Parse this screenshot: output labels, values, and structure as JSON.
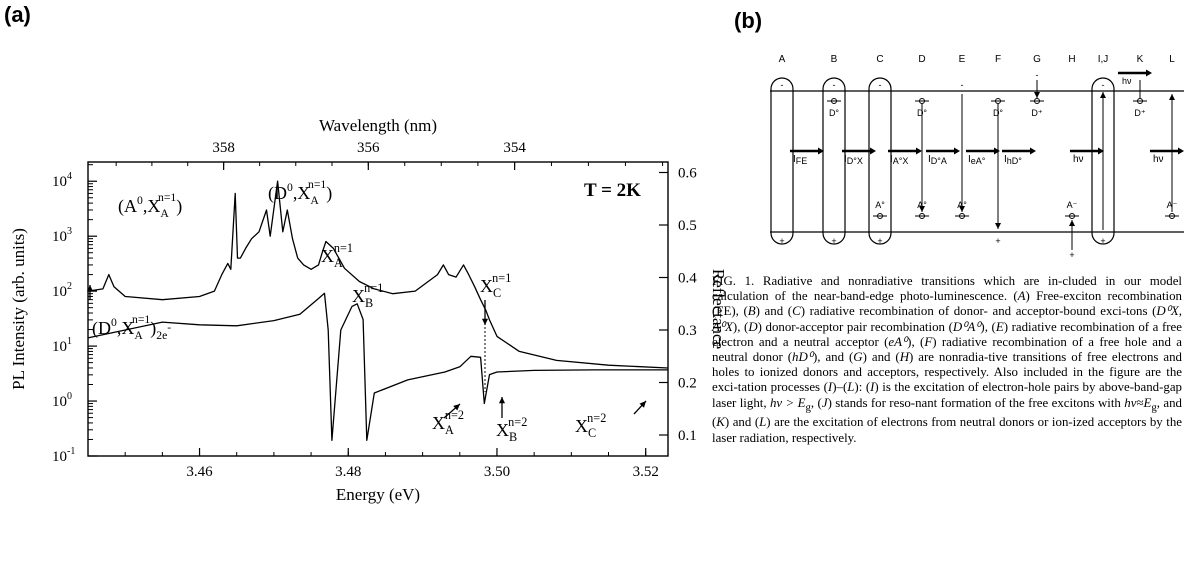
{
  "panel_labels": {
    "a": "(a)",
    "b": "(b)"
  },
  "chart_data": {
    "type": "line",
    "title": "",
    "xlabel": "Energy (eV)",
    "ylabel": "PL Intensity (arb. units)",
    "y2label": "Reflectance",
    "x2label": "Wavelength (nm)",
    "temperature_label": "T = 2K",
    "xlim": [
      3.445,
      3.523
    ],
    "ylim_log10": [
      -1,
      4.35
    ],
    "y2lim": [
      0.06,
      0.62
    ],
    "log_y": true,
    "grid": false,
    "x_ticks": [
      3.46,
      3.48,
      3.5,
      3.52
    ],
    "x_tick_labels": [
      "3.46",
      "3.48",
      "3.50",
      "3.52"
    ],
    "y_ticks_log10": [
      -1,
      0,
      1,
      2,
      3,
      4
    ],
    "y_tick_labels": [
      "10",
      "10",
      "10",
      "10",
      "10",
      "10"
    ],
    "y_tick_exponents": [
      "-1",
      "0",
      "1",
      "2",
      "3",
      "4"
    ],
    "y2_ticks": [
      0.1,
      0.2,
      0.3,
      0.4,
      0.5,
      0.6
    ],
    "y2_tick_labels": [
      "0.1",
      "0.2",
      "0.3",
      "0.4",
      "0.5",
      "0.6"
    ],
    "wavelength_ticks_nm": [
      358,
      356,
      354
    ],
    "wavelength_tick_labels": [
      "358",
      "356",
      "354"
    ],
    "series": [
      {
        "role": "pl",
        "axis": "left",
        "x": [
          3.445,
          3.447,
          3.4478,
          3.4485,
          3.45,
          3.455,
          3.46,
          3.462,
          3.463,
          3.4638,
          3.4642,
          3.4648,
          3.4651,
          3.4655,
          3.4662,
          3.467,
          3.468,
          3.469,
          3.4695,
          3.4705,
          3.4712,
          3.4718,
          3.4725,
          3.4732,
          3.474,
          3.475,
          3.476,
          3.4765,
          3.477,
          3.478,
          3.4795,
          3.4815,
          3.4835,
          3.486,
          3.489,
          3.492,
          3.4928,
          3.4935,
          3.4945,
          3.4955,
          3.4962,
          3.497,
          3.4978,
          3.4985,
          3.499,
          3.5,
          3.503,
          3.508,
          3.515,
          3.523
        ],
        "y": [
          100,
          110,
          200,
          120,
          80,
          70,
          80,
          100,
          200,
          320,
          250,
          6000,
          400,
          400,
          600,
          900,
          1200,
          3000,
          1000,
          10000,
          1200,
          3000,
          900,
          400,
          300,
          250,
          300,
          500,
          800,
          600,
          260,
          150,
          110,
          90,
          100,
          200,
          300,
          200,
          180,
          300,
          200,
          120,
          70,
          45,
          30,
          15,
          8,
          5.5,
          4.5,
          4
        ]
      },
      {
        "role": "reflectance",
        "axis": "right",
        "x": [
          3.445,
          3.45,
          3.455,
          3.46,
          3.465,
          3.47,
          3.4735,
          3.476,
          3.4768,
          3.4773,
          3.4778,
          3.479,
          3.4805,
          3.4812,
          3.482,
          3.4825,
          3.4835,
          3.488,
          3.493,
          3.495,
          3.4965,
          3.4978,
          3.4983,
          3.499,
          3.5,
          3.505,
          3.513,
          3.523
        ],
        "y": [
          0.285,
          0.3,
          0.315,
          0.31,
          0.308,
          0.318,
          0.33,
          0.36,
          0.37,
          0.3,
          0.09,
          0.3,
          0.345,
          0.35,
          0.32,
          0.09,
          0.18,
          0.205,
          0.22,
          0.23,
          0.25,
          0.248,
          0.16,
          0.215,
          0.22,
          0.223,
          0.224,
          0.224
        ]
      }
    ],
    "annotations": [
      {
        "id": "a0xa",
        "base": "(A",
        "sup1": "0",
        "mid": ",X",
        "sub": "A",
        "sup2": "n=1",
        "tail": ")"
      },
      {
        "id": "d0xa",
        "base": "(D",
        "sup1": "0",
        "mid": ",X",
        "sub": "A",
        "sup2": "n=1",
        "tail": ")"
      },
      {
        "id": "xa1",
        "base": "X",
        "sub": "A",
        "sup": "n=1"
      },
      {
        "id": "xb1",
        "base": "X",
        "sub": "B",
        "sup": "n=1"
      },
      {
        "id": "xc1",
        "base": "X",
        "sub": "C",
        "sup": "n=1"
      },
      {
        "id": "d0xa2e",
        "base": "(D",
        "sup1": "0",
        "mid": ",X",
        "sub": "A",
        "sup2": "n=1",
        "tail": ")",
        "tailsub": "2e",
        "tailsup": "-"
      },
      {
        "id": "xa2",
        "base": "X",
        "sub": "A",
        "sup": "n=2"
      },
      {
        "id": "xb2",
        "base": "X",
        "sub": "B",
        "sup": "n=2"
      },
      {
        "id": "xc2",
        "base": "X",
        "sub": "C",
        "sup": "n=2"
      }
    ]
  },
  "diagram": {
    "column_labels": [
      "A",
      "B",
      "C",
      "D",
      "E",
      "F",
      "G",
      "H",
      "I,J",
      "K",
      "L"
    ],
    "transition_labels": {
      "fe": "I",
      "fe_sub": "FE",
      "d0x": "I",
      "d0x_sub": "D°X",
      "a0x": "I",
      "a0x_sub": "A°X",
      "d0a": "I",
      "d0a_sub": "D°A",
      "ea0": "I",
      "ea0_sub": "eA°",
      "hd0": "I",
      "hd0_sub": "hD°",
      "hv_i": "hν",
      "hv_k": "hν",
      "hv_l": "hν"
    },
    "level_labels": {
      "d0_b": "D°",
      "d0_d": "D°",
      "d0_f": "D°",
      "dplus_g": "D⁺",
      "dplus_k": "D⁺",
      "a0_c": "A°",
      "a0_d": "A°",
      "a0_e": "A°",
      "aminus_h": "A⁻",
      "aminus_l": "A⁻"
    },
    "signs": {
      "minus": "-",
      "plus": "+"
    }
  },
  "caption": {
    "p1": "FIG. 1. Radiative and nonradiative transitions which are in-cluded in our model calculation of the near-band-edge photo-luminescence. (",
    "A": "A",
    "p2": ") Free-exciton recombination (FE), (",
    "B": "B",
    "p3": ") and (",
    "C": "C",
    "p4": ") radiative recombination of donor- and acceptor-bound exci-tons (",
    "p5": "D⁰X, A⁰X",
    "p6": "), (",
    "D": "D",
    "p7": ") donor-acceptor pair recombination (",
    "p8": "D⁰A⁰",
    "p9": "), (",
    "E": "E",
    "p10": ") radiative recombination of a free electron and a neutral acceptor (",
    "p11": "eA⁰",
    "p12": "), (",
    "F": "F",
    "p13": ") radiative recombination of a free hole and a neutral donor (",
    "p14": "hD⁰",
    "p15": "), and (",
    "G": "G",
    "p16": ") and (",
    "H": "H",
    "p17": ") are nonradia-tive transitions of free electrons and holes to ionized donors and acceptors, respectively. Also included in the figure are the exci-tation processes (",
    "I": "I",
    "p18": ")–(",
    "L": "L",
    "p19": "): (",
    "I2": "I",
    "p20": ") is the excitation of electron-hole pairs by above-band-gap laser light, ",
    "p21": "hν > E",
    "p21sub": "g",
    "p22": ", (",
    "J": "J",
    "p23": ") stands for reso-nant formation of the free excitons with ",
    "p24": "hν≈E",
    "p24sub": "g",
    "p25": ", and (",
    "K": "K",
    "p26": ") and (",
    "L2": "L",
    "p27": ") are the excitation of electrons from neutral donors or ion-ized acceptors by the laser radiation, respectively."
  }
}
